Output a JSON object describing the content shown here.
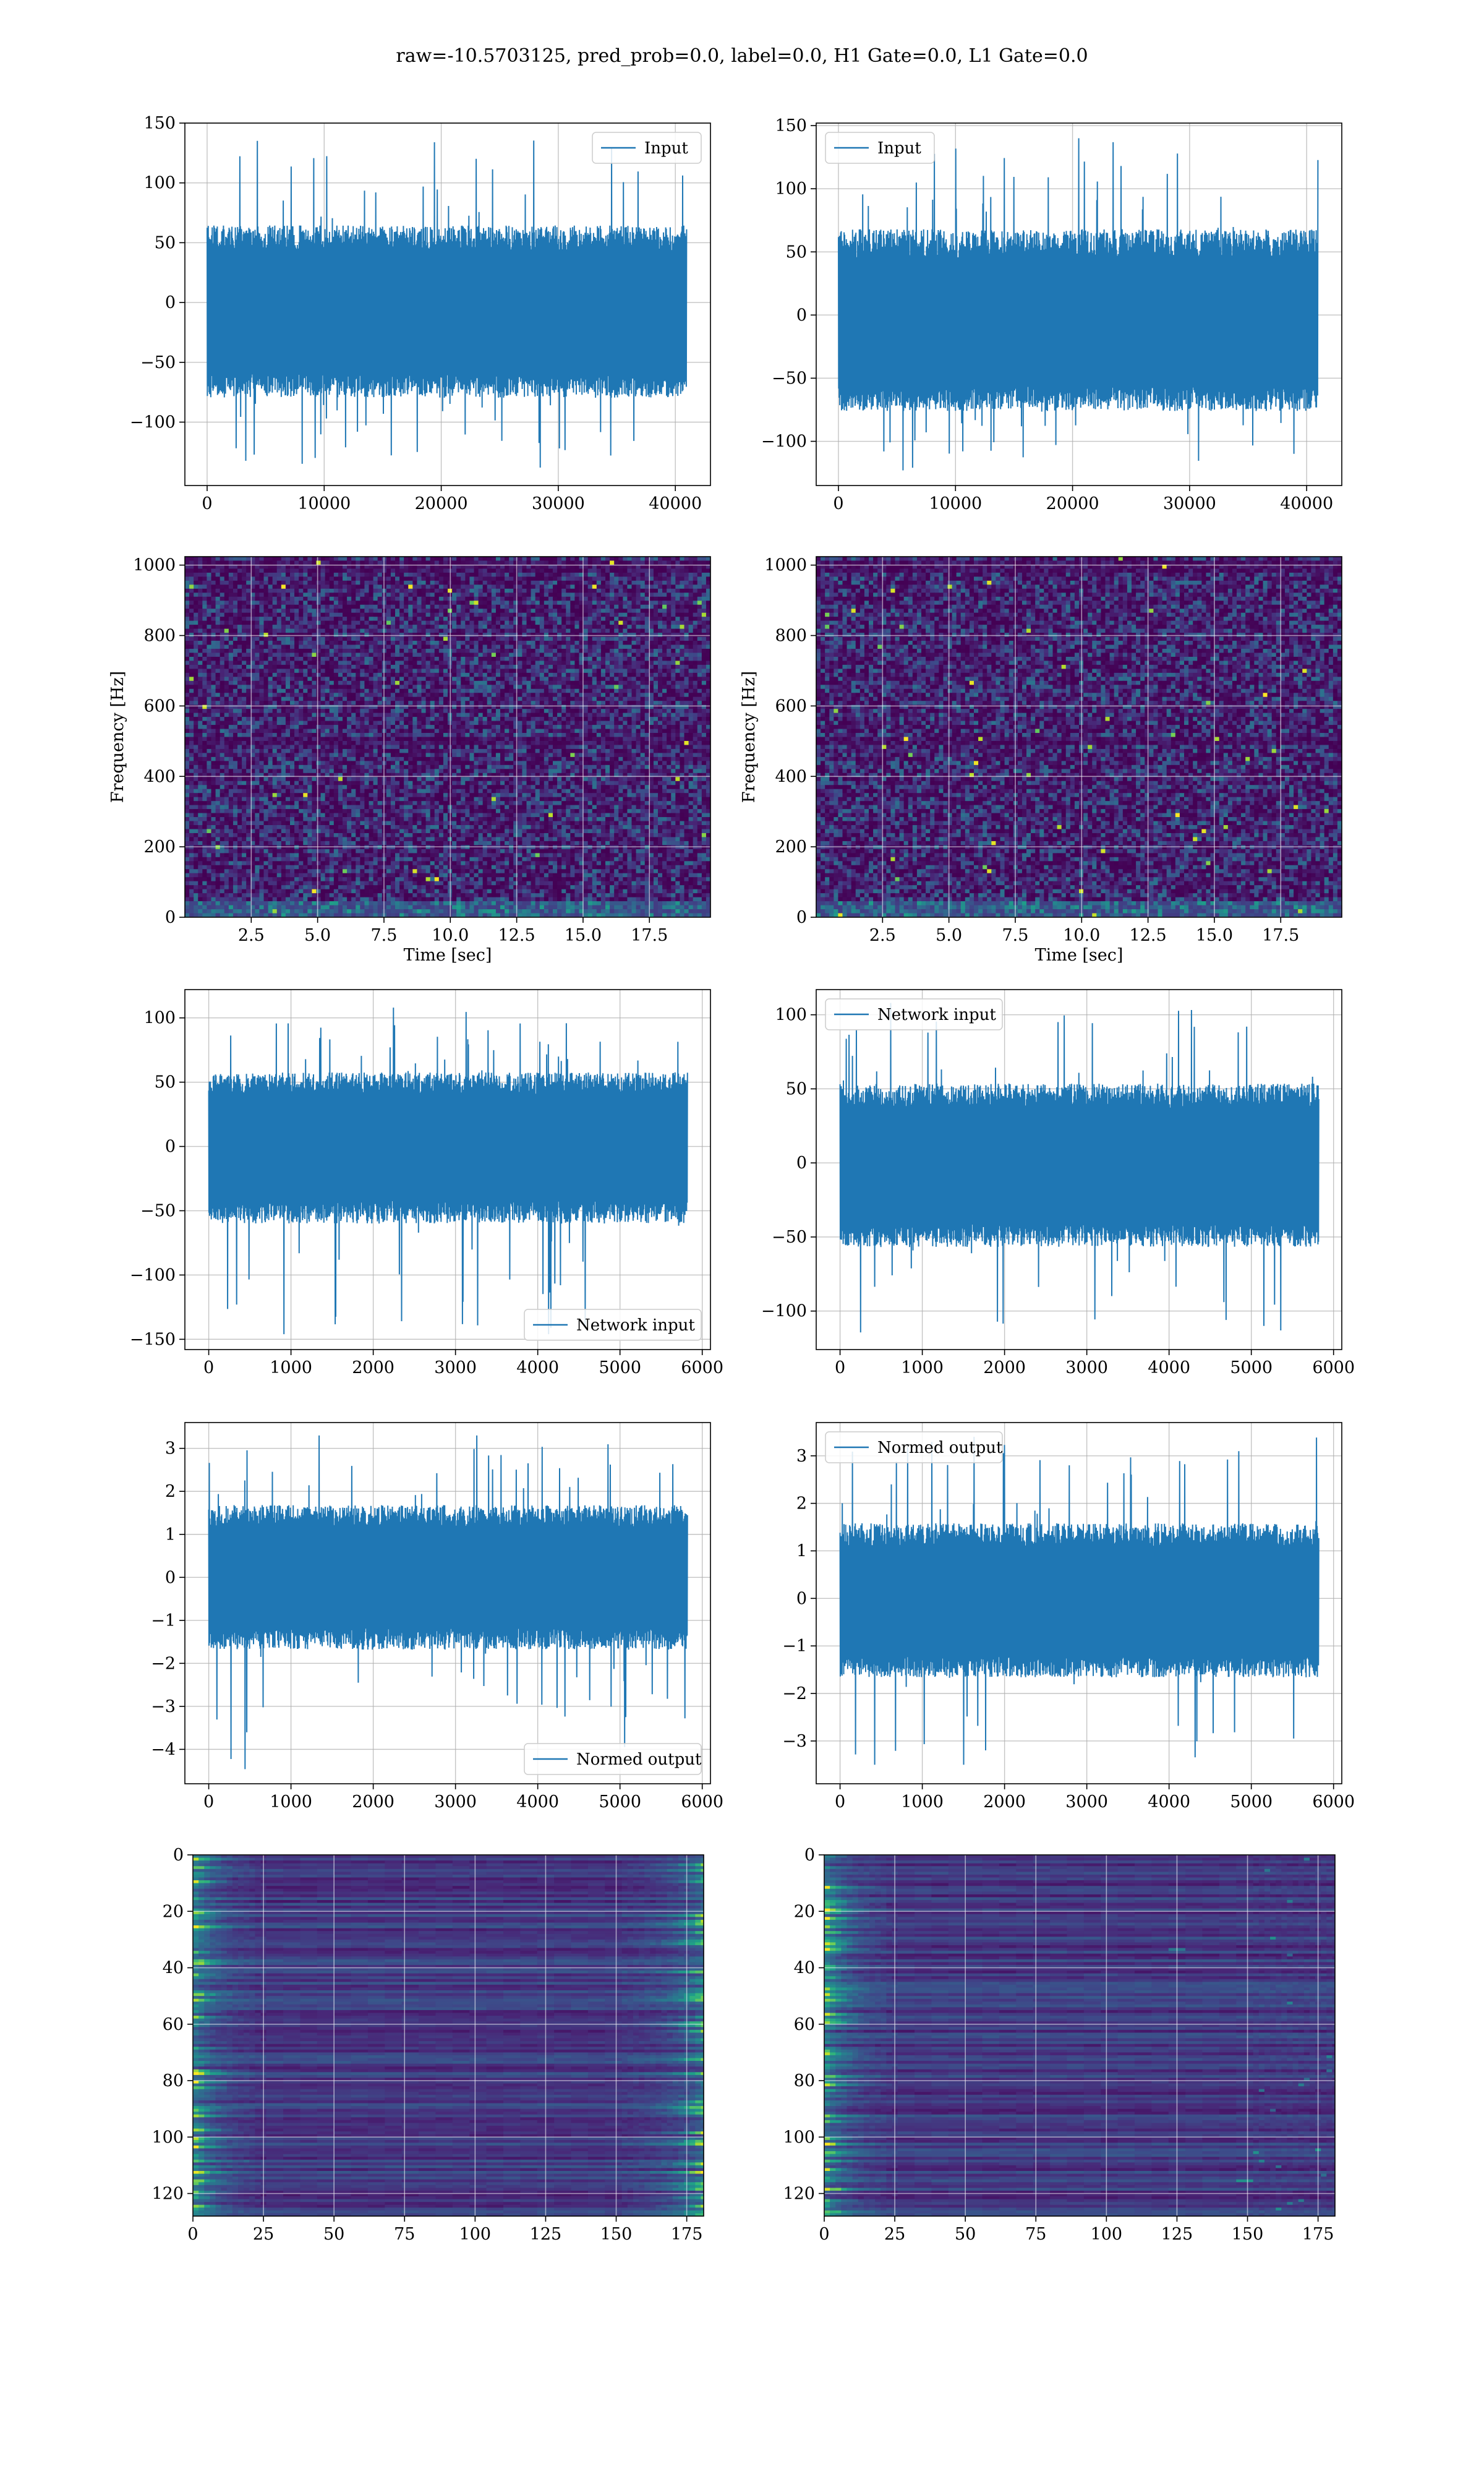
{
  "suptitle": "raw=-10.5703125, pred_prob=0.0, label=0.0, H1 Gate=0.0, L1 Gate=0.0",
  "colors": {
    "line": "#1f77b4",
    "grid": "#b0b0b0",
    "viridis_dark": "#440154",
    "viridis_mid": "#3b528b",
    "viridis_teal": "#21918c",
    "viridis_green": "#5ec962",
    "viridis_yellow": "#fde725"
  },
  "chart_data": [
    {
      "id": "p1",
      "type": "line",
      "xlim": [
        -1900,
        43000
      ],
      "ylim": [
        -153,
        150
      ],
      "xticks": [
        0,
        10000,
        20000,
        30000,
        40000
      ],
      "xtick_labels": [
        "0",
        "10000",
        "20000",
        "30000",
        "40000"
      ],
      "yticks": [
        -100,
        -50,
        0,
        50,
        100,
        150
      ],
      "ytick_labels": [
        "−100",
        "−50",
        "0",
        "50",
        "100",
        "150"
      ],
      "x_range": [
        0,
        40960
      ],
      "center": -10,
      "env_lo": -68,
      "env_hi": 52,
      "spike_lo": -138,
      "spike_hi": 137,
      "legend": {
        "label": "Input",
        "position": "upper right"
      },
      "grid": true,
      "xlabel": "",
      "ylabel": ""
    },
    {
      "id": "p2",
      "type": "line",
      "xlim": [
        -1900,
        43000
      ],
      "ylim": [
        -135,
        152
      ],
      "xticks": [
        0,
        10000,
        20000,
        30000,
        40000
      ],
      "xtick_labels": [
        "0",
        "10000",
        "20000",
        "30000",
        "40000"
      ],
      "yticks": [
        -100,
        -50,
        0,
        50,
        100,
        150
      ],
      "ytick_labels": [
        "−100",
        "−50",
        "0",
        "50",
        "100",
        "150"
      ],
      "x_range": [
        0,
        40960
      ],
      "center": -10,
      "env_lo": -65,
      "env_hi": 55,
      "spike_lo": -123,
      "spike_hi": 140,
      "legend": {
        "label": "Input",
        "position": "upper left"
      },
      "grid": true,
      "xlabel": "",
      "ylabel": ""
    },
    {
      "id": "p3",
      "type": "heatmap",
      "xlim": [
        0,
        19.8
      ],
      "ylim": [
        0,
        1024
      ],
      "xticks": [
        2.5,
        5,
        7.5,
        10,
        12.5,
        15,
        17.5
      ],
      "xtick_labels": [
        "2.5",
        "5.0",
        "7.5",
        "10.0",
        "12.5",
        "15.0",
        "17.5"
      ],
      "yticks": [
        0,
        200,
        400,
        600,
        800,
        1000
      ],
      "ytick_labels": [
        "0",
        "200",
        "400",
        "600",
        "800",
        "1000"
      ],
      "xlabel": "Time [sec]",
      "ylabel": "Frequency [Hz]",
      "grid": true,
      "colormap": "viridis",
      "dark_bands": [
        500,
        1000
      ]
    },
    {
      "id": "p4",
      "type": "heatmap",
      "xlim": [
        0,
        19.8
      ],
      "ylim": [
        0,
        1024
      ],
      "xticks": [
        2.5,
        5,
        7.5,
        10,
        12.5,
        15,
        17.5
      ],
      "xtick_labels": [
        "2.5",
        "5.0",
        "7.5",
        "10.0",
        "12.5",
        "15.0",
        "17.5"
      ],
      "yticks": [
        0,
        200,
        400,
        600,
        800,
        1000
      ],
      "ytick_labels": [
        "0",
        "200",
        "400",
        "600",
        "800",
        "1000"
      ],
      "xlabel": "Time [sec]",
      "ylabel": "Frequency [Hz]",
      "grid": true,
      "colormap": "viridis",
      "dark_bands": [
        500,
        1000
      ]
    },
    {
      "id": "p5",
      "type": "line",
      "xlim": [
        -290,
        6100
      ],
      "ylim": [
        -158,
        122
      ],
      "xticks": [
        0,
        1000,
        2000,
        3000,
        4000,
        5000,
        6000
      ],
      "xtick_labels": [
        "0",
        "1000",
        "2000",
        "3000",
        "4000",
        "5000",
        "6000"
      ],
      "yticks": [
        -150,
        -100,
        -50,
        0,
        50,
        100
      ],
      "ytick_labels": [
        "−150",
        "−100",
        "−50",
        "0",
        "50",
        "100"
      ],
      "x_range": [
        0,
        5820
      ],
      "center": 0,
      "env_lo": -50,
      "env_hi": 48,
      "spike_lo": -146,
      "spike_hi": 108,
      "legend": {
        "label": "Network input",
        "position": "lower right"
      },
      "grid": true,
      "xlabel": "",
      "ylabel": ""
    },
    {
      "id": "p6",
      "type": "line",
      "xlim": [
        -290,
        6100
      ],
      "ylim": [
        -126,
        117
      ],
      "xticks": [
        0,
        1000,
        2000,
        3000,
        4000,
        5000,
        6000
      ],
      "xtick_labels": [
        "0",
        "1000",
        "2000",
        "3000",
        "4000",
        "5000",
        "6000"
      ],
      "yticks": [
        -100,
        -50,
        0,
        50,
        100
      ],
      "ytick_labels": [
        "−100",
        "−50",
        "0",
        "50",
        "100"
      ],
      "x_range": [
        0,
        5820
      ],
      "center": -4,
      "env_lo": -48,
      "env_hi": 44,
      "spike_lo": -117,
      "spike_hi": 108,
      "legend": {
        "label": "Network input",
        "position": "upper left"
      },
      "grid": true,
      "xlabel": "",
      "ylabel": ""
    },
    {
      "id": "p7",
      "type": "line",
      "xlim": [
        -290,
        6100
      ],
      "ylim": [
        -4.8,
        3.6
      ],
      "xticks": [
        0,
        1000,
        2000,
        3000,
        4000,
        5000,
        6000
      ],
      "xtick_labels": [
        "0",
        "1000",
        "2000",
        "3000",
        "4000",
        "5000",
        "6000"
      ],
      "yticks": [
        -4,
        -3,
        -2,
        -1,
        0,
        1,
        2,
        3
      ],
      "ytick_labels": [
        "−4",
        "−3",
        "−2",
        "−1",
        "0",
        "1",
        "2",
        "3"
      ],
      "x_range": [
        0,
        5820
      ],
      "center": 0,
      "env_lo": -1.4,
      "env_hi": 1.4,
      "spike_lo": -4.5,
      "spike_hi": 3.3,
      "legend": {
        "label": "Normed output",
        "position": "lower right"
      },
      "grid": true,
      "xlabel": "",
      "ylabel": ""
    },
    {
      "id": "p8",
      "type": "line",
      "xlim": [
        -290,
        6100
      ],
      "ylim": [
        -3.9,
        3.7
      ],
      "xticks": [
        0,
        1000,
        2000,
        3000,
        4000,
        5000,
        6000
      ],
      "xtick_labels": [
        "0",
        "1000",
        "2000",
        "3000",
        "4000",
        "5000",
        "6000"
      ],
      "yticks": [
        -3,
        -2,
        -1,
        0,
        1,
        2,
        3
      ],
      "ytick_labels": [
        "−3",
        "−2",
        "−1",
        "0",
        "1",
        "2",
        "3"
      ],
      "x_range": [
        0,
        5820
      ],
      "center": -0.1,
      "env_lo": -1.4,
      "env_hi": 1.3,
      "spike_lo": -3.5,
      "spike_hi": 3.4,
      "legend": {
        "label": "Normed output",
        "position": "upper left"
      },
      "grid": true,
      "xlabel": "",
      "ylabel": ""
    },
    {
      "id": "p9",
      "type": "heatmap",
      "xlim": [
        0,
        181
      ],
      "ylim": [
        128,
        0
      ],
      "xticks": [
        0,
        25,
        50,
        75,
        100,
        125,
        150,
        175
      ],
      "xtick_labels": [
        "0",
        "25",
        "50",
        "75",
        "100",
        "125",
        "150",
        "175"
      ],
      "yticks": [
        0,
        20,
        40,
        60,
        80,
        100,
        120
      ],
      "ytick_labels": [
        "0",
        "20",
        "40",
        "60",
        "80",
        "100",
        "120"
      ],
      "colormap": "viridis",
      "grid": true,
      "hot_edges": [
        "left",
        "right"
      ],
      "xlabel": "",
      "ylabel": ""
    },
    {
      "id": "p10",
      "type": "heatmap",
      "xlim": [
        0,
        181
      ],
      "ylim": [
        128,
        0
      ],
      "xticks": [
        0,
        25,
        50,
        75,
        100,
        125,
        150,
        175
      ],
      "xtick_labels": [
        "0",
        "25",
        "50",
        "75",
        "100",
        "125",
        "150",
        "175"
      ],
      "yticks": [
        0,
        20,
        40,
        60,
        80,
        100,
        120
      ],
      "ytick_labels": [
        "0",
        "20",
        "40",
        "60",
        "80",
        "100",
        "120"
      ],
      "colormap": "viridis",
      "grid": true,
      "hot_edges": [
        "left"
      ],
      "xlabel": "",
      "ylabel": ""
    }
  ]
}
